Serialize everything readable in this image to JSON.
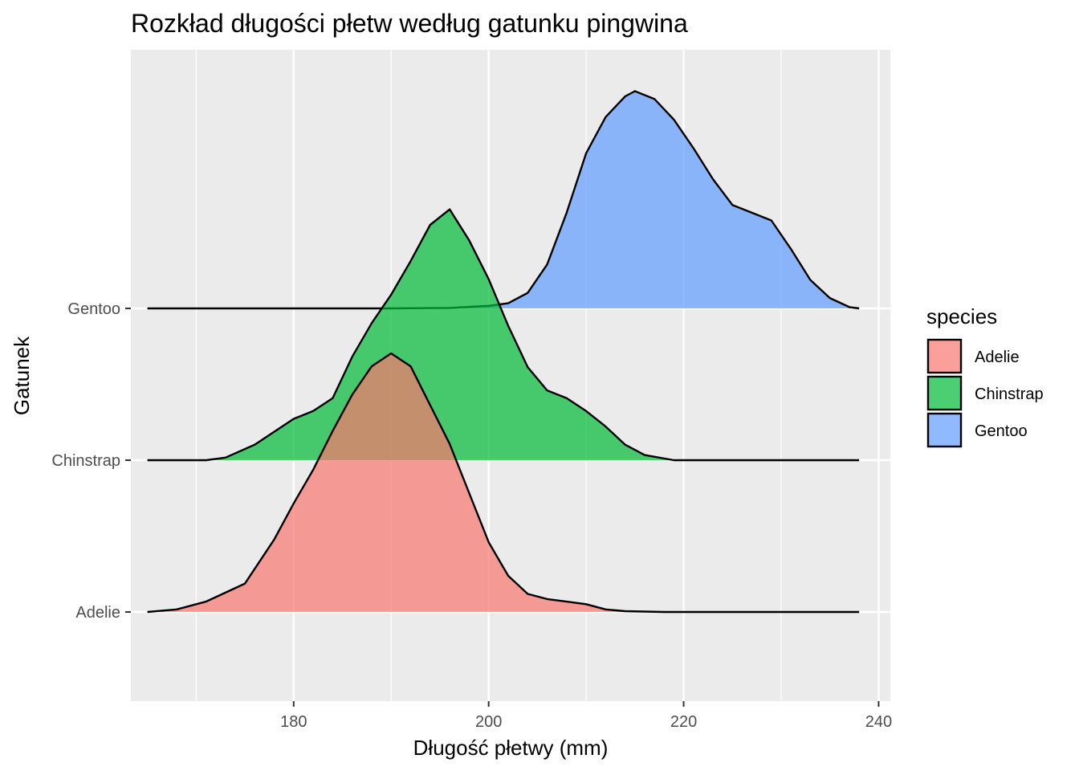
{
  "chart_data": {
    "type": "area",
    "subtype": "ridgeline-density",
    "title": "Rozkład długości płetw według gatunku pingwina",
    "xlabel": "Długość płetwy (mm)",
    "ylabel": "Gatunek",
    "xlim": [
      163.3,
      241.2
    ],
    "x_ticks": [
      180,
      200,
      220,
      240
    ],
    "x_range": [
      165,
      238
    ],
    "categories": [
      "Adelie",
      "Chinstrap",
      "Gentoo"
    ],
    "grid": true,
    "legend": {
      "title": "species",
      "position": "right",
      "entries": [
        "Adelie",
        "Chinstrap",
        "Gentoo"
      ]
    },
    "series": [
      {
        "name": "Adelie",
        "color": "#F8766D",
        "points": [
          [
            165,
            0.0
          ],
          [
            168,
            0.01
          ],
          [
            171,
            0.04
          ],
          [
            175,
            0.11
          ],
          [
            178,
            0.28
          ],
          [
            180,
            0.42
          ],
          [
            182,
            0.55
          ],
          [
            184,
            0.7
          ],
          [
            186,
            0.84
          ],
          [
            188,
            0.95
          ],
          [
            190,
            1.0
          ],
          [
            192,
            0.95
          ],
          [
            194,
            0.8
          ],
          [
            196,
            0.65
          ],
          [
            198,
            0.46
          ],
          [
            200,
            0.27
          ],
          [
            202,
            0.14
          ],
          [
            204,
            0.07
          ],
          [
            206,
            0.05
          ],
          [
            208,
            0.04
          ],
          [
            210,
            0.03
          ],
          [
            212,
            0.01
          ],
          [
            214,
            0.003
          ],
          [
            218,
            0.0
          ],
          [
            238,
            0.0
          ]
        ]
      },
      {
        "name": "Chinstrap",
        "color": "#00BA38",
        "points": [
          [
            165,
            0.0
          ],
          [
            171,
            0.0
          ],
          [
            173,
            0.01
          ],
          [
            176,
            0.06
          ],
          [
            178,
            0.11
          ],
          [
            180,
            0.16
          ],
          [
            182,
            0.19
          ],
          [
            184,
            0.24
          ],
          [
            186,
            0.4
          ],
          [
            188,
            0.53
          ],
          [
            190,
            0.64
          ],
          [
            192,
            0.77
          ],
          [
            194,
            0.91
          ],
          [
            196,
            0.97
          ],
          [
            198,
            0.85
          ],
          [
            200,
            0.7
          ],
          [
            202,
            0.52
          ],
          [
            204,
            0.36
          ],
          [
            206,
            0.27
          ],
          [
            208,
            0.24
          ],
          [
            210,
            0.19
          ],
          [
            212,
            0.13
          ],
          [
            214,
            0.06
          ],
          [
            216,
            0.02
          ],
          [
            219,
            0.0
          ],
          [
            238,
            0.0
          ]
        ]
      },
      {
        "name": "Gentoo",
        "color": "#619CFF",
        "points": [
          [
            165,
            0.0
          ],
          [
            190,
            0.0
          ],
          [
            196,
            0.002
          ],
          [
            200,
            0.01
          ],
          [
            202,
            0.02
          ],
          [
            204,
            0.06
          ],
          [
            206,
            0.17
          ],
          [
            208,
            0.37
          ],
          [
            210,
            0.6
          ],
          [
            212,
            0.74
          ],
          [
            214,
            0.82
          ],
          [
            215,
            0.84
          ],
          [
            217,
            0.81
          ],
          [
            219,
            0.73
          ],
          [
            221,
            0.62
          ],
          [
            223,
            0.5
          ],
          [
            225,
            0.4
          ],
          [
            227,
            0.37
          ],
          [
            229,
            0.34
          ],
          [
            231,
            0.23
          ],
          [
            233,
            0.11
          ],
          [
            235,
            0.04
          ],
          [
            237,
            0.005
          ],
          [
            238,
            0.0
          ]
        ]
      }
    ]
  }
}
